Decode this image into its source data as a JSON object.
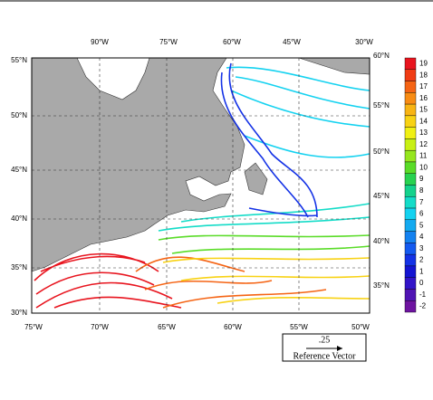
{
  "map": {
    "top_labels": [
      "90°W",
      "75°W",
      "60°W",
      "45°W",
      "30°W"
    ],
    "bottom_labels": [
      "75°W",
      "70°W",
      "65°W",
      "60°W",
      "55°W",
      "50°W"
    ],
    "left_labels": [
      "55°N",
      "50°N",
      "45°N",
      "40°N",
      "35°N",
      "30°N"
    ],
    "right_labels": [
      "60°N",
      "55°N",
      "50°N",
      "45°N",
      "40°N",
      "35°N"
    ]
  },
  "colorbar": {
    "levels": [
      19,
      18,
      17,
      16,
      15,
      14,
      13,
      12,
      11,
      10,
      9,
      8,
      7,
      6,
      5,
      4,
      3,
      2,
      1,
      0,
      -1,
      -2
    ],
    "colors": [
      "#e8141e",
      "#f03c14",
      "#f56414",
      "#f88c14",
      "#f8b414",
      "#f8d214",
      "#f0f014",
      "#c8f014",
      "#96e61e",
      "#5adc28",
      "#28d250",
      "#14d28c",
      "#14dcc8",
      "#14d2f0",
      "#14aaf0",
      "#1482f0",
      "#145af0",
      "#1432e6",
      "#1414d2",
      "#3214c8",
      "#5014b4",
      "#6e14a0"
    ]
  },
  "reference": {
    "value": ".25",
    "label": "Reference Vector"
  }
}
